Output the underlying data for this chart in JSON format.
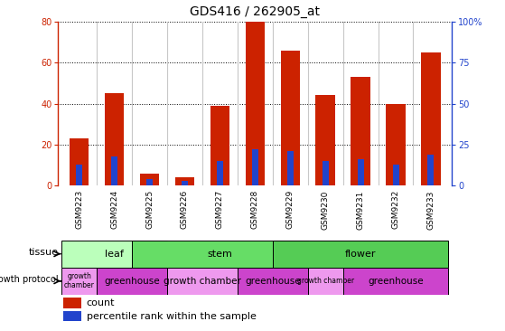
{
  "title": "GDS416 / 262905_at",
  "samples": [
    "GSM9223",
    "GSM9224",
    "GSM9225",
    "GSM9226",
    "GSM9227",
    "GSM9228",
    "GSM9229",
    "GSM9230",
    "GSM9231",
    "GSM9232",
    "GSM9233"
  ],
  "counts": [
    23,
    45,
    6,
    4,
    39,
    80,
    66,
    44,
    53,
    40,
    65
  ],
  "percentiles": [
    13,
    18,
    4,
    3,
    15,
    22,
    21,
    15,
    16,
    13,
    19
  ],
  "ylim_left": [
    0,
    80
  ],
  "ylim_right": [
    0,
    100
  ],
  "yticks_left": [
    0,
    20,
    40,
    60,
    80
  ],
  "yticks_right": [
    0,
    25,
    50,
    75,
    100
  ],
  "bar_color": "#cc2200",
  "percentile_color": "#2244cc",
  "tissue_groups": [
    {
      "label": "leaf",
      "start": 0,
      "end": 2,
      "color": "#bbffbb"
    },
    {
      "label": "stem",
      "start": 2,
      "end": 6,
      "color": "#66dd66"
    },
    {
      "label": "flower",
      "start": 6,
      "end": 10,
      "color": "#55cc55"
    }
  ],
  "protocol_groups": [
    {
      "label": "growth\nchamber",
      "start": 0,
      "end": 1,
      "color": "#ee99ee"
    },
    {
      "label": "greenhouse",
      "start": 1,
      "end": 3,
      "color": "#cc44cc"
    },
    {
      "label": "growth chamber",
      "start": 3,
      "end": 5,
      "color": "#ee99ee"
    },
    {
      "label": "greenhouse",
      "start": 5,
      "end": 7,
      "color": "#cc44cc"
    },
    {
      "label": "growth chamber",
      "start": 7,
      "end": 8,
      "color": "#ee99ee"
    },
    {
      "label": "greenhouse",
      "start": 8,
      "end": 11,
      "color": "#cc44cc"
    }
  ],
  "tissue_label": "tissue",
  "protocol_label": "growth protocol",
  "legend_count_label": "count",
  "legend_percentile_label": "percentile rank within the sample",
  "xtick_bg": "#c8c8c8",
  "title_fontsize": 10,
  "tick_fontsize": 7,
  "bar_width": 0.55,
  "perc_bar_width": 0.18
}
